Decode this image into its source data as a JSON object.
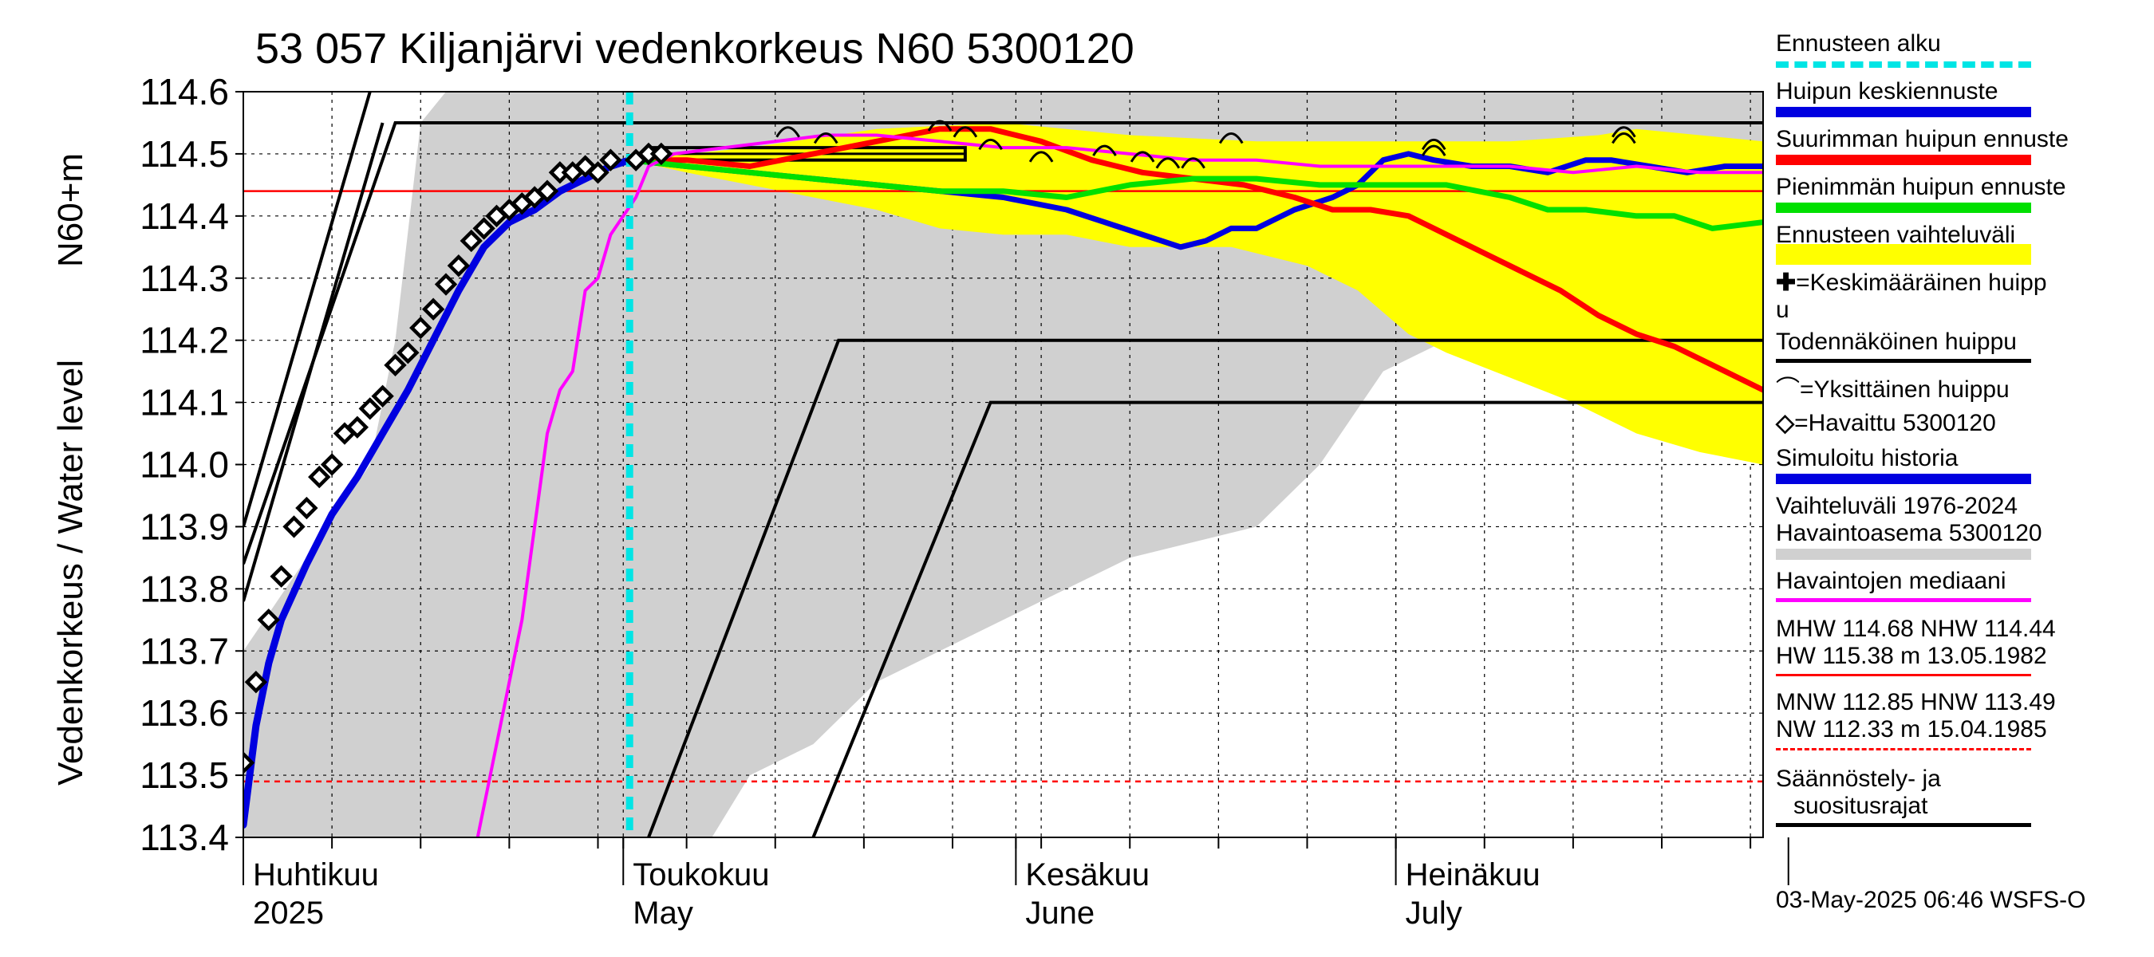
{
  "title": "53 057 Kiljanjärvi vedenkorkeus N60 5300120",
  "ylabel_top": "N60+m",
  "ylabel_main": "Vedenkorkeus / Water level",
  "footer": "03-May-2025 06:46 WSFS-O",
  "colors": {
    "forecast_start": "#00e5e5",
    "mean_peak": "#0000e0",
    "max_peak": "#ff0000",
    "min_peak": "#00e000",
    "forecast_range": "#ffff00",
    "history_range": "#d0d0d0",
    "median": "#ff00ff",
    "black": "#000000"
  },
  "legend": {
    "ennusteen_alku": "Ennusteen alku",
    "huipun_keski": "Huipun keskiennuste",
    "suurimman": "Suurimman huipun ennuste",
    "pienimman": "Pienimmän huipun ennuste",
    "vaihteluvali": "Ennusteen vaihteluväli",
    "keskimaarainen_1": "=Keskimääräinen huipp",
    "keskimaarainen_2": "u",
    "todennakoinen": "Todennäköinen huippu",
    "yksittainen": "=Yksittäinen huippu",
    "havaittu": "=Havaittu 5300120",
    "simuloitu": "Simuloitu historia",
    "vaihteluvali_hist_1": "Vaihteluväli 1976-2024",
    "vaihteluvali_hist_2": " Havaintoasema 5300120",
    "mediaani": "Havaintojen mediaani",
    "mhw_1": "MHW 114.68 NHW 114.44",
    "mhw_2": "HW 115.38 m 13.05.1982",
    "mnw_1": "MNW 112.85 HNW 113.49",
    "mnw_2": "NW 112.33 m 15.04.1985",
    "saannostely_1": "Säännöstely- ja",
    "saannostely_2": "suositusrajat"
  },
  "chart_data": {
    "type": "line",
    "title": "53 057 Kiljanjärvi vedenkorkeus N60 5300120",
    "ylabel": "Vedenkorkeus / Water level N60+m",
    "ylim": [
      113.4,
      114.6
    ],
    "xlim_days": [
      0,
      120
    ],
    "yticks": [
      113.4,
      113.5,
      113.6,
      113.7,
      113.8,
      113.9,
      114.0,
      114.1,
      114.2,
      114.3,
      114.4,
      114.5,
      114.6
    ],
    "ytick_labels": [
      "113.4",
      "113.5",
      "113.6",
      "113.7",
      "113.8",
      "113.9",
      "114.0",
      "114.1",
      "114.2",
      "114.3",
      "114.4",
      "114.5",
      "114.6"
    ],
    "months": [
      {
        "fi": "Huhtikuu",
        "en": "2025",
        "start": 0
      },
      {
        "fi": "Toukokuu",
        "en": "May",
        "start": 30
      },
      {
        "fi": "Kesäkuu",
        "en": "June",
        "start": 61
      },
      {
        "fi": "Heinäkuu",
        "en": "July",
        "start": 91
      }
    ],
    "month_end": 122,
    "forecast_start_day": 30.5,
    "reference_lines": {
      "nhw": 114.44,
      "hnw": 113.49
    },
    "observed": [
      [
        0,
        113.52
      ],
      [
        1,
        113.65
      ],
      [
        2,
        113.75
      ],
      [
        3,
        113.82
      ],
      [
        4,
        113.9
      ],
      [
        5,
        113.93
      ],
      [
        6,
        113.98
      ],
      [
        7,
        114.0
      ],
      [
        8,
        114.05
      ],
      [
        9,
        114.06
      ],
      [
        10,
        114.09
      ],
      [
        11,
        114.11
      ],
      [
        12,
        114.16
      ],
      [
        13,
        114.18
      ],
      [
        14,
        114.22
      ],
      [
        15,
        114.25
      ],
      [
        16,
        114.29
      ],
      [
        17,
        114.32
      ],
      [
        18,
        114.36
      ],
      [
        19,
        114.38
      ],
      [
        20,
        114.4
      ],
      [
        21,
        114.41
      ],
      [
        22,
        114.42
      ],
      [
        23,
        114.43
      ],
      [
        24,
        114.44
      ],
      [
        25,
        114.47
      ],
      [
        26,
        114.47
      ],
      [
        27,
        114.48
      ],
      [
        28,
        114.47
      ],
      [
        29,
        114.49
      ],
      [
        31,
        114.49
      ],
      [
        32,
        114.5
      ],
      [
        33,
        114.5
      ]
    ],
    "series": [
      {
        "name": "Simuloitu historia",
        "color": "#0000e0",
        "width": 9,
        "points": [
          [
            0,
            113.42
          ],
          [
            1,
            113.58
          ],
          [
            2,
            113.68
          ],
          [
            3,
            113.75
          ],
          [
            5,
            113.84
          ],
          [
            7,
            113.92
          ],
          [
            9,
            113.98
          ],
          [
            11,
            114.05
          ],
          [
            13,
            114.12
          ],
          [
            15,
            114.2
          ],
          [
            17,
            114.28
          ],
          [
            19,
            114.35
          ],
          [
            21,
            114.39
          ],
          [
            23,
            114.41
          ],
          [
            25,
            114.44
          ],
          [
            27,
            114.46
          ],
          [
            29,
            114.48
          ],
          [
            30.5,
            114.49
          ]
        ]
      },
      {
        "name": "Huipun keskiennuste",
        "color": "#0000e0",
        "width": 7,
        "points": [
          [
            30.5,
            114.49
          ],
          [
            35,
            114.48
          ],
          [
            40,
            114.47
          ],
          [
            45,
            114.46
          ],
          [
            50,
            114.45
          ],
          [
            55,
            114.44
          ],
          [
            60,
            114.43
          ],
          [
            65,
            114.41
          ],
          [
            68,
            114.39
          ],
          [
            71,
            114.37
          ],
          [
            74,
            114.35
          ],
          [
            76,
            114.36
          ],
          [
            78,
            114.38
          ],
          [
            80,
            114.38
          ],
          [
            83,
            114.41
          ],
          [
            86,
            114.43
          ],
          [
            88,
            114.45
          ],
          [
            90,
            114.49
          ],
          [
            92,
            114.5
          ],
          [
            94,
            114.49
          ],
          [
            97,
            114.48
          ],
          [
            100,
            114.48
          ],
          [
            103,
            114.47
          ],
          [
            106,
            114.49
          ],
          [
            108,
            114.49
          ],
          [
            111,
            114.48
          ],
          [
            114,
            114.47
          ],
          [
            117,
            114.48
          ],
          [
            120,
            114.48
          ]
        ]
      },
      {
        "name": "Suurimman huipun ennuste",
        "color": "#ff0000",
        "width": 7,
        "points": [
          [
            30.5,
            114.49
          ],
          [
            35,
            114.49
          ],
          [
            40,
            114.48
          ],
          [
            45,
            114.5
          ],
          [
            50,
            114.52
          ],
          [
            55,
            114.54
          ],
          [
            59,
            114.54
          ],
          [
            63,
            114.52
          ],
          [
            67,
            114.49
          ],
          [
            71,
            114.47
          ],
          [
            75,
            114.46
          ],
          [
            79,
            114.45
          ],
          [
            83,
            114.43
          ],
          [
            86,
            114.41
          ],
          [
            89,
            114.41
          ],
          [
            92,
            114.4
          ],
          [
            95,
            114.37
          ],
          [
            98,
            114.34
          ],
          [
            101,
            114.31
          ],
          [
            104,
            114.28
          ],
          [
            107,
            114.24
          ],
          [
            110,
            114.21
          ],
          [
            113,
            114.19
          ],
          [
            116,
            114.16
          ],
          [
            120,
            114.12
          ]
        ]
      },
      {
        "name": "Pienimmän huipun ennuste",
        "color": "#00e000",
        "width": 7,
        "points": [
          [
            30.5,
            114.49
          ],
          [
            35,
            114.48
          ],
          [
            40,
            114.47
          ],
          [
            45,
            114.46
          ],
          [
            50,
            114.45
          ],
          [
            55,
            114.44
          ],
          [
            60,
            114.44
          ],
          [
            65,
            114.43
          ],
          [
            70,
            114.45
          ],
          [
            75,
            114.46
          ],
          [
            80,
            114.46
          ],
          [
            85,
            114.45
          ],
          [
            90,
            114.45
          ],
          [
            95,
            114.45
          ],
          [
            100,
            114.43
          ],
          [
            103,
            114.41
          ],
          [
            106,
            114.41
          ],
          [
            110,
            114.4
          ],
          [
            113,
            114.4
          ],
          [
            116,
            114.38
          ],
          [
            120,
            114.39
          ]
        ]
      },
      {
        "name": "Havaintojen mediaani",
        "color": "#ff00ff",
        "width": 4,
        "points": [
          [
            18.5,
            113.4
          ],
          [
            20,
            113.55
          ],
          [
            22,
            113.75
          ],
          [
            24,
            114.05
          ],
          [
            25,
            114.12
          ],
          [
            26,
            114.15
          ],
          [
            27,
            114.28
          ],
          [
            28,
            114.3
          ],
          [
            29,
            114.37
          ],
          [
            30,
            114.4
          ],
          [
            31,
            114.43
          ],
          [
            32,
            114.48
          ],
          [
            34,
            114.5
          ],
          [
            38,
            114.51
          ],
          [
            42,
            114.52
          ],
          [
            46,
            114.53
          ],
          [
            50,
            114.53
          ],
          [
            55,
            114.52
          ],
          [
            60,
            114.51
          ],
          [
            65,
            114.51
          ],
          [
            70,
            114.5
          ],
          [
            75,
            114.49
          ],
          [
            80,
            114.49
          ],
          [
            85,
            114.48
          ],
          [
            90,
            114.48
          ],
          [
            95,
            114.48
          ],
          [
            100,
            114.48
          ],
          [
            105,
            114.47
          ],
          [
            110,
            114.48
          ],
          [
            115,
            114.47
          ],
          [
            120,
            114.47
          ]
        ]
      }
    ],
    "forecast_range_upper": [
      [
        30.5,
        114.49
      ],
      [
        40,
        114.51
      ],
      [
        50,
        114.54
      ],
      [
        60,
        114.55
      ],
      [
        70,
        114.53
      ],
      [
        80,
        114.52
      ],
      [
        90,
        114.52
      ],
      [
        100,
        114.52
      ],
      [
        107,
        114.53
      ],
      [
        110,
        114.54
      ],
      [
        115,
        114.53
      ],
      [
        120,
        114.52
      ]
    ],
    "forecast_range_lower": [
      [
        120,
        114.0
      ],
      [
        115,
        114.02
      ],
      [
        110,
        114.05
      ],
      [
        105,
        114.1
      ],
      [
        100,
        114.14
      ],
      [
        95,
        114.18
      ],
      [
        92,
        114.21
      ],
      [
        88,
        114.28
      ],
      [
        84,
        114.32
      ],
      [
        78,
        114.35
      ],
      [
        70,
        114.35
      ],
      [
        65,
        114.37
      ],
      [
        60,
        114.37
      ],
      [
        55,
        114.38
      ],
      [
        50,
        114.41
      ],
      [
        45,
        114.43
      ],
      [
        40,
        114.45
      ],
      [
        35,
        114.47
      ],
      [
        30.5,
        114.49
      ]
    ],
    "history_range_upper": [
      [
        0,
        113.7
      ],
      [
        10,
        114.0
      ],
      [
        12,
        114.2
      ],
      [
        14,
        114.55
      ],
      [
        16,
        114.6
      ],
      [
        120,
        114.6
      ]
    ],
    "history_range_lower": [
      [
        120,
        114.16
      ],
      [
        110,
        114.16
      ],
      [
        100,
        114.18
      ],
      [
        95,
        114.2
      ],
      [
        90,
        114.15
      ],
      [
        85,
        114.0
      ],
      [
        80,
        113.9
      ],
      [
        70,
        113.85
      ],
      [
        65,
        113.8
      ],
      [
        60,
        113.75
      ],
      [
        55,
        113.7
      ],
      [
        50,
        113.65
      ],
      [
        45,
        113.55
      ],
      [
        40,
        113.5
      ],
      [
        37,
        113.4
      ],
      [
        0,
        113.4
      ]
    ],
    "todennakoinen_steps": [
      {
        "rise_start": [
          0,
          113.84
        ],
        "rise_end": [
          12,
          114.55
        ],
        "plateau_to": 120,
        "y": 114.55
      },
      {
        "rise_start": [
          32,
          113.4
        ],
        "rise_end": [
          47,
          114.2
        ],
        "plateau_to": 120,
        "y": 114.2
      },
      {
        "rise_start": [
          45,
          113.4
        ],
        "rise_end": [
          59,
          114.1
        ],
        "plateau_to": 120,
        "y": 114.1
      }
    ],
    "extra_rise_lines": [
      [
        [
          0,
          113.78
        ],
        [
          11,
          114.55
        ]
      ],
      [
        [
          0,
          113.9
        ],
        [
          10,
          114.6
        ]
      ]
    ],
    "flat_box": {
      "x0": 32,
      "x1": 57,
      "y0": 114.49,
      "y1": 114.51
    },
    "yksittainen_peaks": [
      [
        43,
        114.54
      ],
      [
        46,
        114.53
      ],
      [
        55,
        114.55
      ],
      [
        57,
        114.54
      ],
      [
        59,
        114.52
      ],
      [
        63,
        114.5
      ],
      [
        68,
        114.51
      ],
      [
        71,
        114.5
      ],
      [
        73,
        114.49
      ],
      [
        75,
        114.49
      ],
      [
        78,
        114.53
      ],
      [
        94,
        114.52
      ],
      [
        94,
        114.51
      ],
      [
        109,
        114.53
      ],
      [
        109,
        114.54
      ]
    ]
  }
}
